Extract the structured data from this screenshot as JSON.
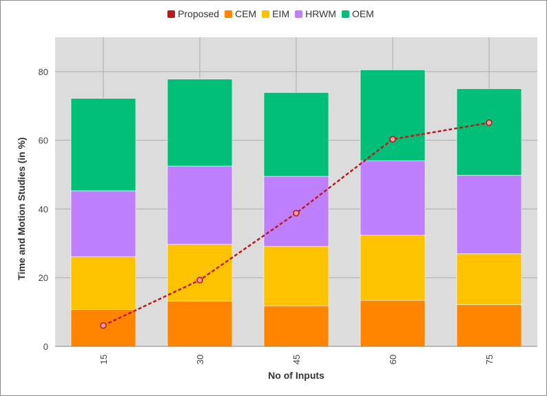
{
  "chart_data": {
    "type": "bar",
    "stacked": true,
    "categories": [
      "15",
      "30",
      "45",
      "60",
      "75"
    ],
    "series": [
      {
        "name": "CEM",
        "values": [
          10.7,
          13.2,
          11.8,
          13.4,
          12.1
        ],
        "color": "#ff8500"
      },
      {
        "name": "EIM",
        "values": [
          15.4,
          16.5,
          17.3,
          19.0,
          14.9
        ],
        "color": "#ffc200"
      },
      {
        "name": "HRWM",
        "values": [
          19.2,
          22.8,
          20.4,
          21.6,
          22.8
        ],
        "color": "#bf80ff"
      },
      {
        "name": "OEM",
        "values": [
          26.9,
          25.3,
          24.4,
          26.5,
          25.2
        ],
        "color": "#00bf78"
      }
    ],
    "line_series": {
      "name": "Proposed",
      "values": [
        6.1,
        19.3,
        38.8,
        60.3,
        65.1
      ],
      "color": "#c01818"
    },
    "legend_order": [
      "Proposed",
      "CEM",
      "EIM",
      "HRWM",
      "OEM"
    ],
    "xlabel": "No of Inputs",
    "ylabel": "Time and Motion Studies (in %)",
    "ylim": [
      0,
      90
    ],
    "yticks": [
      0,
      20,
      40,
      60,
      80
    ],
    "grid": true,
    "legend_position": "top"
  }
}
